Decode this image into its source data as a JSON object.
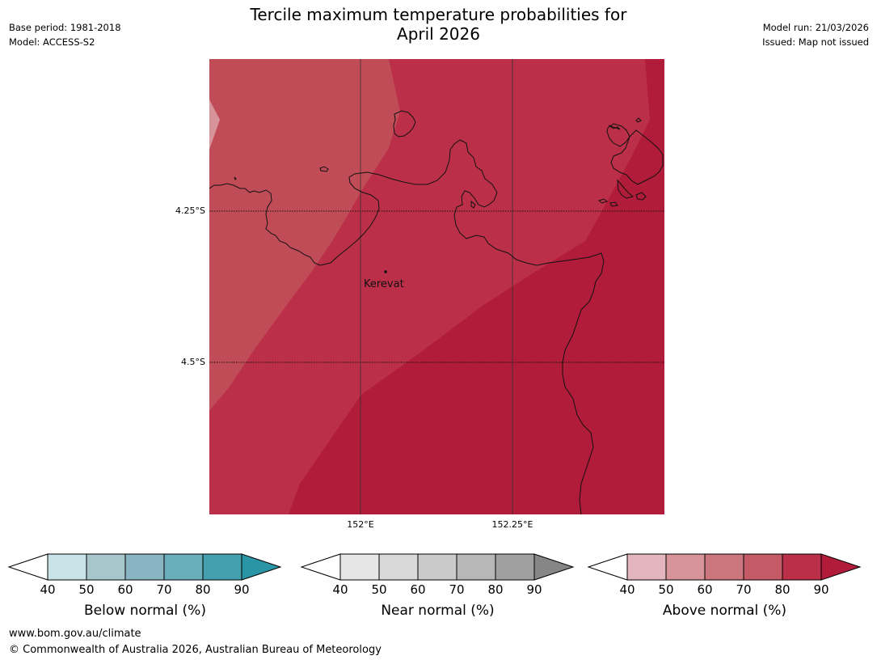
{
  "header": {
    "title_line1": "Tercile maximum temperature probabilities for",
    "title_line2": "April 2026",
    "base_period": "Base period: 1981-2018",
    "model": "Model: ACCESS-S2",
    "model_run": "Model run: 21/03/2026",
    "issued": "Issued: Map not issued"
  },
  "map": {
    "latitude_labels": [
      "4.25°S",
      "4.5°S"
    ],
    "longitude_labels": [
      "152°E",
      "152.25°E"
    ],
    "place_label": "Kerevat",
    "fill_colors": {
      "above_50_60": "#d6939a",
      "above_60_70": "#c04c57",
      "above_70_80": "#bb3048",
      "above_80_90": "#b01c39"
    }
  },
  "legend": {
    "below": {
      "label": "Below normal (%)",
      "ticks": [
        "40",
        "50",
        "60",
        "70",
        "80",
        "90"
      ],
      "colors": [
        "#ffffff",
        "#c9e2e7",
        "#a7c6cc",
        "#88b5c1",
        "#6aadbb",
        "#44a0ae",
        "#2a95a5"
      ]
    },
    "near": {
      "label": "Near normal (%)",
      "ticks": [
        "40",
        "50",
        "60",
        "70",
        "80",
        "90"
      ],
      "colors": [
        "#ffffff",
        "#e6e6e6",
        "#d9d9d9",
        "#cacaca",
        "#b7b7b7",
        "#a0a0a0",
        "#868686"
      ]
    },
    "above": {
      "label": "Above normal (%)",
      "ticks": [
        "40",
        "50",
        "60",
        "70",
        "80",
        "90"
      ],
      "colors": [
        "#ffffff",
        "#e2b6bc",
        "#d6939a",
        "#ca767c",
        "#c45a66",
        "#bb3048",
        "#b01c39"
      ]
    }
  },
  "footer": {
    "url": "www.bom.gov.au/climate",
    "copyright": "© Commonwealth of Australia 2026, Australian Bureau of Meteorology"
  }
}
